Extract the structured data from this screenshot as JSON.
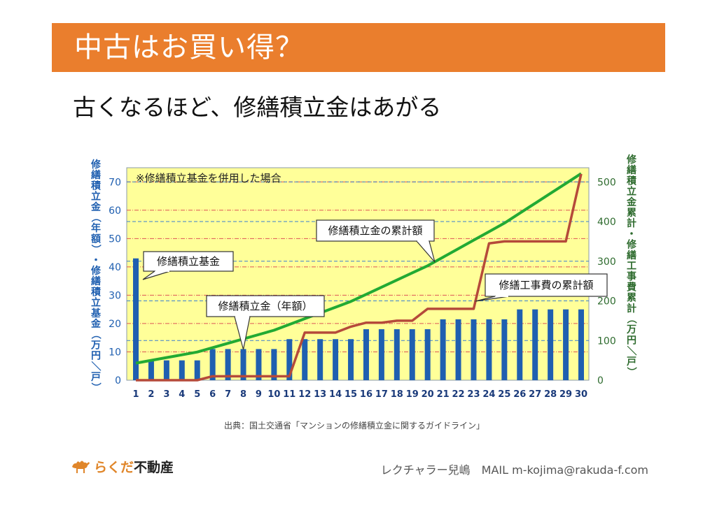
{
  "slide": {
    "title": "中古はお買い得？",
    "subtitle": "古くなるほど、修繕積立金はあがる",
    "source": "出典：国土交通省「マンションの修繕積立金に関するガイドライン」",
    "footer": {
      "logo_accent": "らくだ",
      "logo_rest": "不動産",
      "contact": "レクチャラー兒嶋　MAIL m-kojima@rakuda-f.com"
    }
  },
  "colors": {
    "title_band": "#ea7e2d",
    "plot_bg": "#ffff99",
    "bar": "#1f5fb0",
    "cumulative_fund_line": "#22aa33",
    "cumulative_repair_line": "#b54a3a",
    "left_axis_text": "#1f5fb0",
    "right_axis_text": "#2e6b2e"
  },
  "icons": {
    "logo": "camel-icon"
  },
  "chart_data": {
    "type": "bar",
    "note": "※修繕積立基金を併用した場合",
    "categories": [
      "1",
      "2",
      "3",
      "4",
      "5",
      "6",
      "7",
      "8",
      "9",
      "10",
      "11",
      "12",
      "13",
      "14",
      "15",
      "16",
      "17",
      "18",
      "19",
      "20",
      "21",
      "22",
      "23",
      "24",
      "25",
      "26",
      "27",
      "28",
      "29",
      "30"
    ],
    "y_left": {
      "label": "修繕積立金（年額）・修繕積立基金（万円／戸）",
      "ticks": [
        0,
        10,
        20,
        30,
        40,
        50,
        60,
        70
      ],
      "lim": [
        0,
        75
      ]
    },
    "y_right": {
      "label": "修繕積立金累計・修繕工事費累計（万円／戸）",
      "ticks": [
        0,
        100,
        200,
        300,
        400,
        500
      ],
      "lim": [
        0,
        535.7
      ]
    },
    "series": [
      {
        "name": "修繕積立金（年額）",
        "type": "bar",
        "axis": "left",
        "values": [
          43,
          7,
          7,
          7,
          7,
          11,
          11,
          11,
          11,
          11,
          14.5,
          14.5,
          14.5,
          14.5,
          14.5,
          18,
          18,
          18,
          18,
          18,
          21.5,
          21.5,
          21.5,
          21.5,
          21.5,
          25,
          25,
          25,
          25,
          25
        ]
      },
      {
        "name": "修繕積立金の累計額",
        "type": "line",
        "axis": "right",
        "values": [
          43,
          50,
          57,
          64,
          71,
          82,
          93,
          104,
          115,
          126,
          140.5,
          155,
          169.5,
          184,
          198.5,
          216.5,
          234.5,
          252.5,
          270.5,
          288.5,
          310,
          331.5,
          353,
          374.5,
          396,
          421,
          446,
          471,
          496,
          521
        ]
      },
      {
        "name": "修繕工事費の累計額",
        "type": "line",
        "axis": "right",
        "values": [
          0,
          0,
          0,
          0,
          0,
          10,
          10,
          10,
          10,
          10,
          10,
          120,
          120,
          120,
          135,
          145,
          145,
          150,
          150,
          180,
          180,
          180,
          180,
          345,
          350,
          350,
          350,
          350,
          350,
          520
        ]
      }
    ],
    "callouts": [
      "修繕積立基金",
      "修繕積立金（年額）",
      "修繕積立金の累計額",
      "修繕工事費の累計額"
    ],
    "grid": true
  }
}
